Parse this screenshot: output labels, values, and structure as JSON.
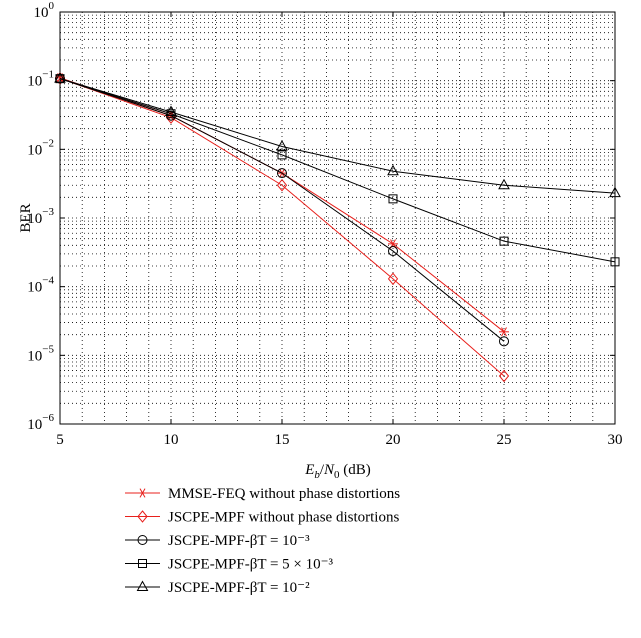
{
  "chart_data": {
    "type": "line",
    "x_scale": "linear",
    "y_scale": "log",
    "xlim": [
      5,
      30
    ],
    "ylim": [
      1e-06,
      1
    ],
    "grid": true,
    "grid_style": "dotted",
    "xlabel": "E_b/N_0 (dB)",
    "ylabel": "BER",
    "x_ticks": [
      "5",
      "10",
      "15",
      "20",
      "25",
      "30"
    ],
    "y_tick_exponents": [
      "0",
      "−1",
      "−2",
      "−3",
      "−4",
      "−5",
      "−6"
    ],
    "y_tick_base": "10",
    "legend_position": "below",
    "series": [
      {
        "name": "MMSE-FEQ without phase distortions",
        "color": "#e8201c",
        "marker": "asterisk",
        "x": [
          5,
          10,
          15,
          20,
          25
        ],
        "y": [
          0.11,
          0.031,
          0.0045,
          0.00042,
          2.2e-05
        ]
      },
      {
        "name": "JSCPE-MPF without phase distortions",
        "color": "#e8201c",
        "marker": "diamond",
        "x": [
          5,
          10,
          15,
          20,
          25
        ],
        "y": [
          0.108,
          0.029,
          0.003,
          0.00013,
          5e-06
        ]
      },
      {
        "name": "JSCPE-MPF-βT = 10⁻³",
        "color": "#000000",
        "marker": "circle",
        "x": [
          5,
          10,
          15,
          20,
          25
        ],
        "y": [
          0.107,
          0.031,
          0.0045,
          0.00033,
          1.6e-05
        ]
      },
      {
        "name": "JSCPE-MPF-βT = 5 × 10⁻³",
        "color": "#000000",
        "marker": "square",
        "x": [
          5,
          10,
          15,
          20,
          25,
          30
        ],
        "y": [
          0.107,
          0.033,
          0.0083,
          0.0019,
          0.00046,
          0.00023
        ]
      },
      {
        "name": "JSCPE-MPF-βT = 10⁻²",
        "color": "#000000",
        "marker": "triangle",
        "x": [
          5,
          10,
          15,
          20,
          25,
          30
        ],
        "y": [
          0.107,
          0.035,
          0.011,
          0.0048,
          0.003,
          0.0023
        ]
      }
    ]
  }
}
